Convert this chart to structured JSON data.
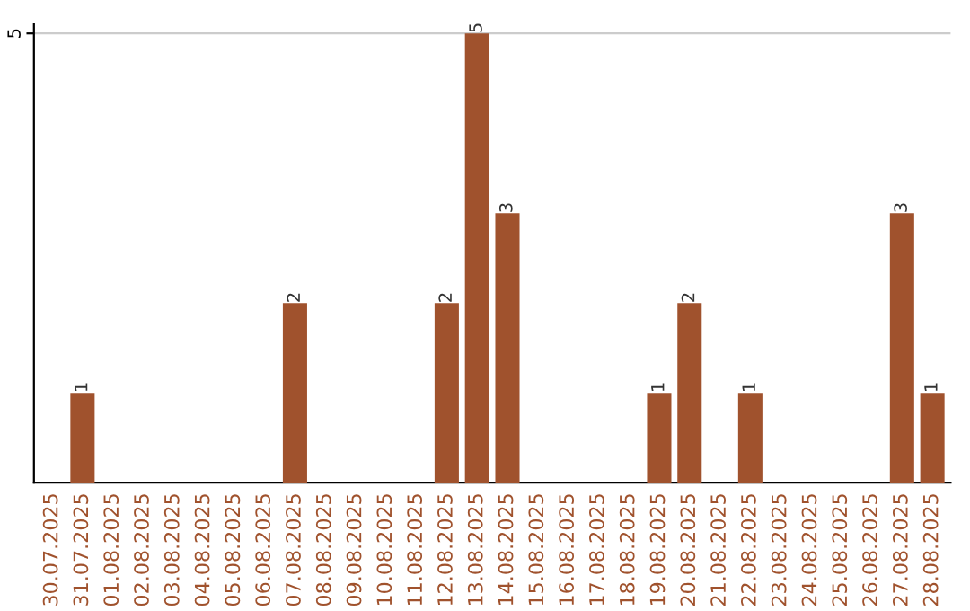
{
  "chart_data": {
    "type": "bar",
    "categories": [
      "30.07.2025",
      "31.07.2025",
      "01.08.2025",
      "02.08.2025",
      "03.08.2025",
      "04.08.2025",
      "05.08.2025",
      "06.08.2025",
      "07.08.2025",
      "08.08.2025",
      "09.08.2025",
      "10.08.2025",
      "11.08.2025",
      "12.08.2025",
      "13.08.2025",
      "14.08.2025",
      "15.08.2025",
      "16.08.2025",
      "17.08.2025",
      "18.08.2025",
      "19.08.2025",
      "20.08.2025",
      "21.08.2025",
      "22.08.2025",
      "23.08.2025",
      "24.08.2025",
      "25.08.2025",
      "26.08.2025",
      "27.08.2025",
      "28.08.2025"
    ],
    "values": [
      0,
      1,
      0,
      0,
      0,
      0,
      0,
      0,
      2,
      0,
      0,
      0,
      0,
      2,
      5,
      3,
      0,
      0,
      0,
      0,
      1,
      2,
      0,
      1,
      0,
      0,
      0,
      0,
      3,
      1
    ],
    "value_labels": [
      null,
      "1",
      null,
      null,
      null,
      null,
      null,
      null,
      "2",
      null,
      null,
      null,
      null,
      "2",
      "5",
      "3",
      null,
      null,
      null,
      null,
      "1",
      "2",
      null,
      "1",
      null,
      null,
      null,
      null,
      "3",
      "1"
    ],
    "color": "#a0522d",
    "ylim": [
      0,
      5.1
    ],
    "yticks": [
      5
    ],
    "grid": "y",
    "legend": false
  }
}
